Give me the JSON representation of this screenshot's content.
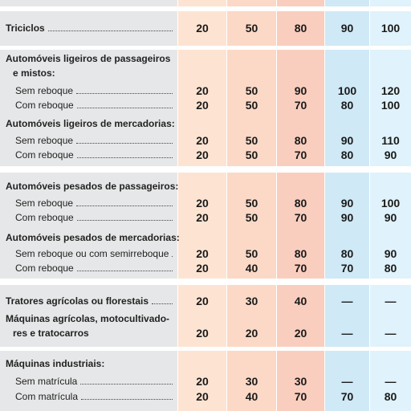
{
  "table": {
    "groups": [
      {
        "rows": [
          {
            "row": [
              "Triciclos"
            ],
            "values": [
              20,
              50,
              80,
              90,
              100
            ]
          }
        ]
      },
      {
        "rows": [
          {
            "heading": [
              "Automóveis ligeiros de passageiros",
              "e mistos:"
            ]
          },
          {
            "item": "Sem reboque",
            "values": [
              20,
              50,
              90,
              100,
              120
            ]
          },
          {
            "item": "Com reboque",
            "values": [
              20,
              50,
              70,
              80,
              100
            ]
          },
          {
            "heading": [
              "Automóveis ligeiros de mercadorias:"
            ]
          },
          {
            "item": "Sem reboque",
            "values": [
              20,
              50,
              80,
              90,
              110
            ]
          },
          {
            "item": "Com reboque",
            "values": [
              20,
              50,
              70,
              80,
              90
            ]
          }
        ]
      },
      {
        "rows": [
          {
            "heading": [
              "Automóveis pesados de passageiros:"
            ]
          },
          {
            "item": "Sem reboque",
            "values": [
              20,
              50,
              80,
              90,
              100
            ]
          },
          {
            "item": "Com reboque",
            "values": [
              20,
              50,
              70,
              90,
              90
            ]
          },
          {
            "heading": [
              "Automóveis pesados de mercadorias:"
            ]
          },
          {
            "item": "Sem reboque ou com semirreboque",
            "values": [
              20,
              50,
              80,
              80,
              90
            ]
          },
          {
            "item": "Com reboque",
            "values": [
              20,
              40,
              70,
              70,
              80
            ]
          }
        ]
      },
      {
        "rows": [
          {
            "row": [
              "Tratores agrícolas ou florestais"
            ],
            "values": [
              20,
              30,
              40,
              "—",
              "—"
            ]
          },
          {
            "row": [
              "Máquinas agrícolas, motocultivado-",
              "res e tratocarros"
            ],
            "values": [
              20,
              20,
              20,
              "—",
              "—"
            ]
          }
        ]
      },
      {
        "rows": [
          {
            "heading": [
              "Máquinas industriais:"
            ]
          },
          {
            "item": "Sem matrícula",
            "values": [
              20,
              30,
              30,
              "—",
              "—"
            ]
          },
          {
            "item": "Com matrícula",
            "values": [
              20,
              40,
              70,
              70,
              80
            ]
          }
        ]
      }
    ]
  }
}
